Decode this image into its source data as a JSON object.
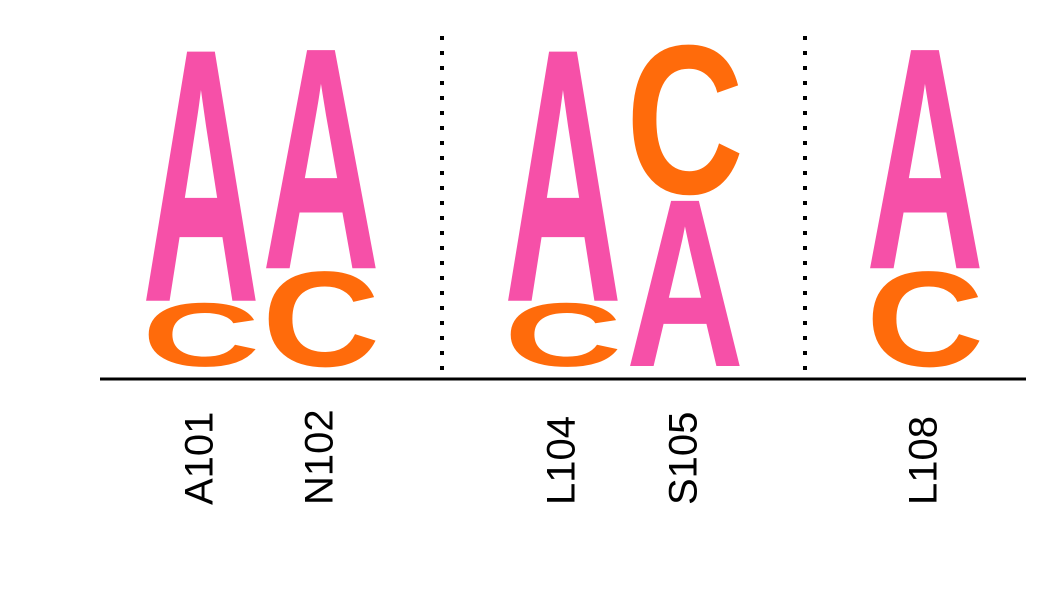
{
  "chart_data": {
    "type": "sequence-logo",
    "title": "",
    "xlabel": "",
    "ylabel": "",
    "colors": {
      "A": "#f650a8",
      "C": "#ff6b0b"
    },
    "positions": [
      {
        "label": "A101",
        "stack": [
          {
            "letter": "C",
            "value": 0.2
          },
          {
            "letter": "A",
            "value": 0.8
          }
        ]
      },
      {
        "label": "N102",
        "stack": [
          {
            "letter": "C",
            "value": 0.3
          },
          {
            "letter": "A",
            "value": 0.7
          }
        ]
      },
      {
        "label": "L104",
        "stack": [
          {
            "letter": "C",
            "value": 0.2
          },
          {
            "letter": "A",
            "value": 0.8
          }
        ]
      },
      {
        "label": "S105",
        "stack": [
          {
            "letter": "A",
            "value": 0.53
          },
          {
            "letter": "C",
            "value": 0.47
          }
        ]
      },
      {
        "label": "L108",
        "stack": [
          {
            "letter": "C",
            "value": 0.3
          },
          {
            "letter": "A",
            "value": 0.7
          }
        ]
      }
    ],
    "separators_after": [
      "N102",
      "S105"
    ]
  }
}
